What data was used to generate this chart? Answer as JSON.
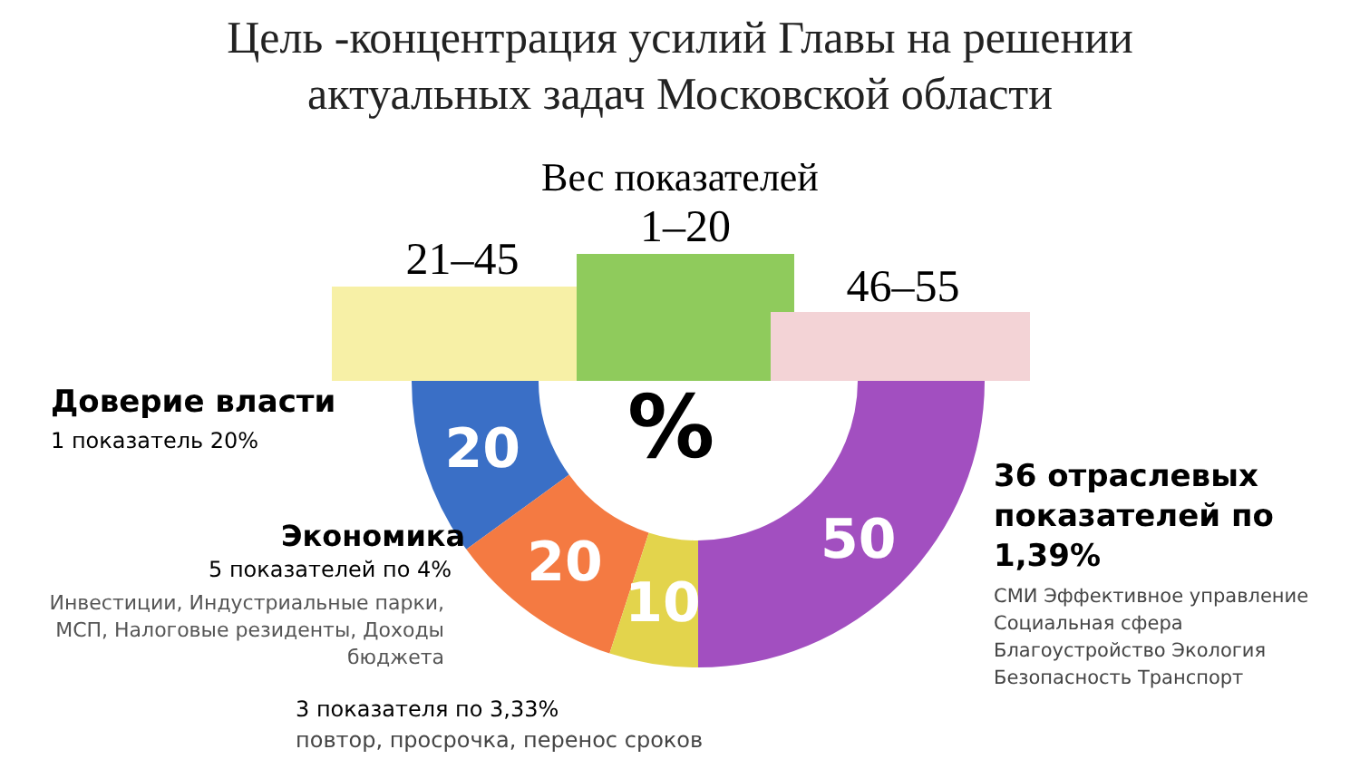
{
  "chart_data": {
    "type": "donut",
    "title": "Цель -концентрация усилий Главы на решении актуальных задач Московской области",
    "categories": [
      "Доверие власти",
      "Экономика",
      null,
      "36 отраслевых показателей по 1,39%"
    ],
    "values": [
      20,
      20,
      10,
      50
    ],
    "colors": [
      "#3a6fc6",
      "#f47a42",
      "#e3d44c",
      "#a24fc0"
    ],
    "data_labels": true,
    "annotations": [
      "Вес показателей",
      "21–45",
      "1–20",
      "46–55",
      "%",
      "1 показатель 20%",
      "5 показателей по 4%",
      "Инвестиции, Индустриальные парки, МСП, Налоговые резиденты, Доходы бюджета",
      "3 показателя по 3,33%",
      "повтор, просрочка, перенос сроков",
      "СМИ Эффективное управление Социальная сфера Благоустройство Экология Безопасность Транспорт"
    ]
  }
}
